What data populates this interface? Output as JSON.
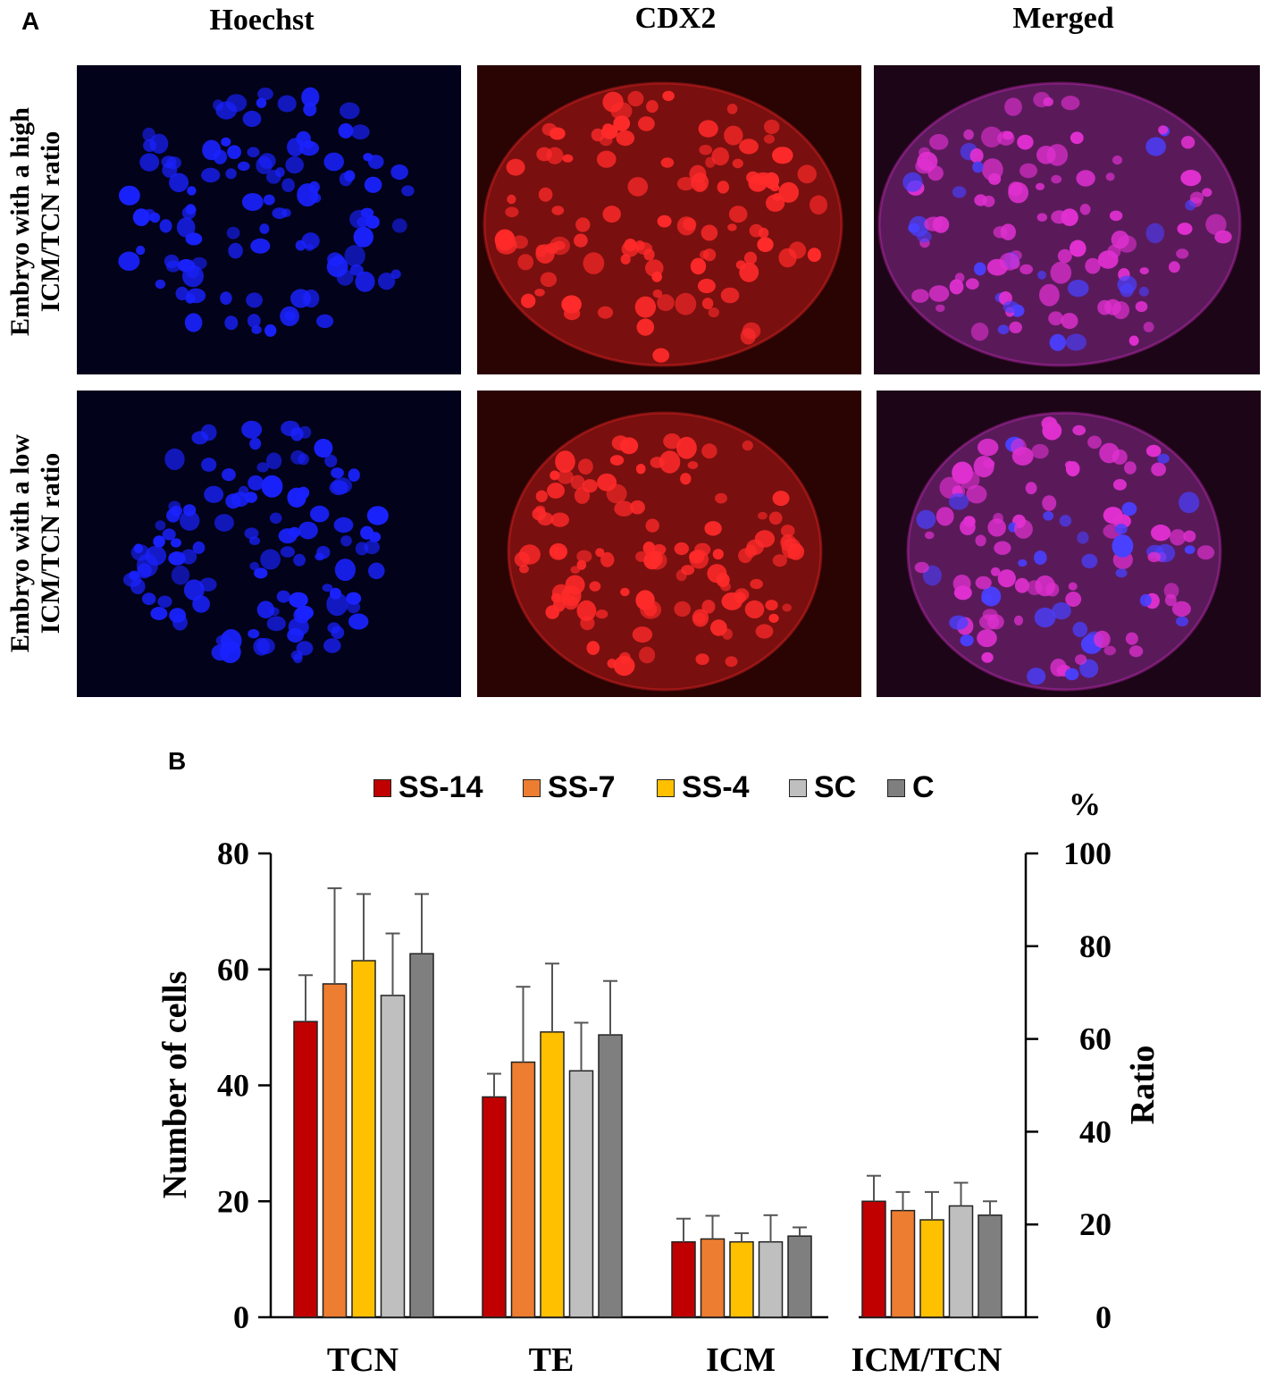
{
  "panel_a": {
    "label": "A",
    "columns": [
      "Hoechst",
      "CDX2",
      "Merged"
    ],
    "rows": [
      {
        "line1": "Embryo with a high",
        "line2": "ICM/TCN ratio"
      },
      {
        "line1": "Embryo with a low",
        "line2": "ICM/TCN ratio"
      }
    ],
    "image_colors": {
      "hoechst_bg": "#02021a",
      "hoechst_cell": "#1a22ff",
      "cdx2_bg": "#2a0303",
      "cdx2_body": "#7a0f0f",
      "cdx2_cell": "#ff2a2a",
      "merged_bg": "#1c0516",
      "merged_body": "#5a1a5a",
      "merged_cell": "#e030d0",
      "merged_blue": "#4a40ff"
    }
  },
  "panel_b": {
    "label": "B",
    "percent_symbol": "%",
    "colors": {
      "SS-14": "#c00000",
      "SS-7": "#ed7d31",
      "SS-4": "#ffc000",
      "SC": "#bfbfbf",
      "C": "#7f7f7f",
      "error": "#555555"
    }
  },
  "chart_data": {
    "type": "bar",
    "categories": [
      "TCN",
      "TE",
      "ICM",
      "ICM/TCN"
    ],
    "legend": [
      "SS-14",
      "SS-7",
      "SS-4",
      "SC",
      "C"
    ],
    "left_axis": {
      "label": "Number of cells",
      "ylim": [
        0,
        80
      ],
      "ticks": [
        "0",
        "20",
        "40",
        "60",
        "80"
      ]
    },
    "right_axis": {
      "label": "Ratio",
      "unit": "%",
      "ylim": [
        0,
        100
      ],
      "ticks": [
        "0",
        "20",
        "40",
        "60",
        "80",
        "100"
      ],
      "applies_to": "ICM/TCN"
    },
    "series": [
      {
        "name": "SS-14",
        "values": [
          51,
          38,
          13,
          25
        ],
        "errors": [
          8,
          4,
          4,
          5.5
        ]
      },
      {
        "name": "SS-7",
        "values": [
          57.5,
          44,
          13.5,
          23
        ],
        "errors": [
          16.5,
          13,
          4,
          4
        ]
      },
      {
        "name": "SS-4",
        "values": [
          61.5,
          49.2,
          13,
          21
        ],
        "errors": [
          11.5,
          11.8,
          1.5,
          6
        ]
      },
      {
        "name": "SC",
        "values": [
          55.5,
          42.5,
          13,
          24
        ],
        "errors": [
          10.7,
          8.3,
          4.6,
          5
        ]
      },
      {
        "name": "C",
        "values": [
          62.7,
          48.7,
          14,
          22
        ],
        "errors": [
          10.3,
          9.3,
          1.5,
          3
        ]
      }
    ]
  }
}
